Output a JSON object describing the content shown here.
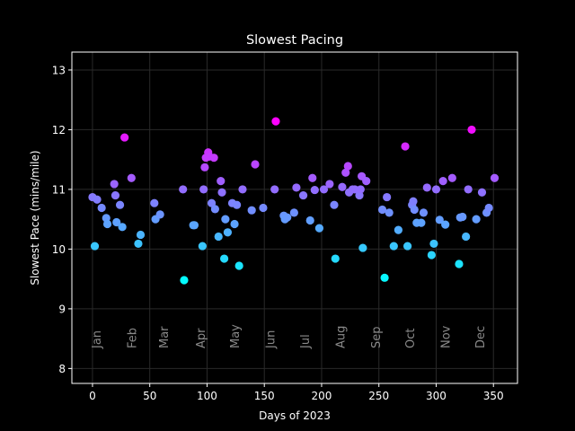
{
  "chart_data": {
    "type": "scatter",
    "title": "Slowest Pacing",
    "xlabel": "Days of 2023",
    "ylabel": "Slowest Pace (mins/mile)",
    "xlim": [
      -18,
      371
    ],
    "ylim": [
      7.75,
      13.3
    ],
    "xticks": [
      0,
      50,
      100,
      150,
      200,
      250,
      300,
      350
    ],
    "yticks": [
      8,
      9,
      10,
      11,
      12,
      13
    ],
    "grid": true,
    "colormap": "cool (cyan = faster, magenta = slower)",
    "month_labels": [
      {
        "label": "Jan",
        "x": 3
      },
      {
        "label": "Feb",
        "x": 34
      },
      {
        "label": "Mar",
        "x": 62
      },
      {
        "label": "Apr",
        "x": 94
      },
      {
        "label": "May",
        "x": 124
      },
      {
        "label": "Jun",
        "x": 155
      },
      {
        "label": "Jul",
        "x": 185
      },
      {
        "label": "Aug",
        "x": 216
      },
      {
        "label": "Sep",
        "x": 247
      },
      {
        "label": "Oct",
        "x": 277
      },
      {
        "label": "Nov",
        "x": 308
      },
      {
        "label": "Dec",
        "x": 338
      }
    ],
    "points": [
      {
        "x": 0,
        "y": 10.87
      },
      {
        "x": 2,
        "y": 10.05
      },
      {
        "x": 4,
        "y": 10.83
      },
      {
        "x": 8,
        "y": 10.69
      },
      {
        "x": 12,
        "y": 10.52
      },
      {
        "x": 13,
        "y": 10.42
      },
      {
        "x": 19,
        "y": 11.09
      },
      {
        "x": 20,
        "y": 10.9
      },
      {
        "x": 21,
        "y": 10.45
      },
      {
        "x": 24,
        "y": 10.74
      },
      {
        "x": 26,
        "y": 10.37
      },
      {
        "x": 28,
        "y": 11.87
      },
      {
        "x": 34,
        "y": 11.19
      },
      {
        "x": 40,
        "y": 10.09
      },
      {
        "x": 42,
        "y": 10.24
      },
      {
        "x": 54,
        "y": 10.77
      },
      {
        "x": 55,
        "y": 10.5
      },
      {
        "x": 59,
        "y": 10.58
      },
      {
        "x": 79,
        "y": 11.0
      },
      {
        "x": 80,
        "y": 9.48
      },
      {
        "x": 88,
        "y": 10.4
      },
      {
        "x": 89,
        "y": 10.4
      },
      {
        "x": 96,
        "y": 10.05
      },
      {
        "x": 97,
        "y": 11.0
      },
      {
        "x": 98,
        "y": 11.37
      },
      {
        "x": 99,
        "y": 11.53
      },
      {
        "x": 101,
        "y": 11.62
      },
      {
        "x": 102,
        "y": 11.55
      },
      {
        "x": 104,
        "y": 10.77
      },
      {
        "x": 106,
        "y": 11.53
      },
      {
        "x": 107,
        "y": 10.67
      },
      {
        "x": 110,
        "y": 10.21
      },
      {
        "x": 112,
        "y": 11.14
      },
      {
        "x": 113,
        "y": 10.95
      },
      {
        "x": 115,
        "y": 9.84
      },
      {
        "x": 116,
        "y": 10.5
      },
      {
        "x": 118,
        "y": 10.28
      },
      {
        "x": 122,
        "y": 10.77
      },
      {
        "x": 124,
        "y": 10.42
      },
      {
        "x": 126,
        "y": 10.74
      },
      {
        "x": 128,
        "y": 9.72
      },
      {
        "x": 131,
        "y": 11.0
      },
      {
        "x": 139,
        "y": 10.65
      },
      {
        "x": 142,
        "y": 11.42
      },
      {
        "x": 149,
        "y": 10.69
      },
      {
        "x": 159,
        "y": 11.0
      },
      {
        "x": 160,
        "y": 12.14
      },
      {
        "x": 167,
        "y": 10.56
      },
      {
        "x": 168,
        "y": 10.5
      },
      {
        "x": 170,
        "y": 10.53
      },
      {
        "x": 176,
        "y": 10.61
      },
      {
        "x": 178,
        "y": 11.03
      },
      {
        "x": 184,
        "y": 10.9
      },
      {
        "x": 190,
        "y": 10.48
      },
      {
        "x": 192,
        "y": 11.19
      },
      {
        "x": 194,
        "y": 10.99
      },
      {
        "x": 198,
        "y": 10.35
      },
      {
        "x": 202,
        "y": 11.0
      },
      {
        "x": 207,
        "y": 11.09
      },
      {
        "x": 211,
        "y": 10.74
      },
      {
        "x": 212,
        "y": 9.84
      },
      {
        "x": 218,
        "y": 11.04
      },
      {
        "x": 221,
        "y": 11.28
      },
      {
        "x": 223,
        "y": 11.39
      },
      {
        "x": 224,
        "y": 10.95
      },
      {
        "x": 227,
        "y": 11.0
      },
      {
        "x": 229,
        "y": 11.0
      },
      {
        "x": 233,
        "y": 10.9
      },
      {
        "x": 234,
        "y": 11.0
      },
      {
        "x": 235,
        "y": 11.22
      },
      {
        "x": 236,
        "y": 10.02
      },
      {
        "x": 239,
        "y": 11.14
      },
      {
        "x": 253,
        "y": 10.66
      },
      {
        "x": 255,
        "y": 9.52
      },
      {
        "x": 257,
        "y": 10.87
      },
      {
        "x": 259,
        "y": 10.61
      },
      {
        "x": 263,
        "y": 10.05
      },
      {
        "x": 267,
        "y": 10.32
      },
      {
        "x": 273,
        "y": 11.72
      },
      {
        "x": 275,
        "y": 10.05
      },
      {
        "x": 279,
        "y": 10.74
      },
      {
        "x": 280,
        "y": 10.8
      },
      {
        "x": 281,
        "y": 10.66
      },
      {
        "x": 283,
        "y": 10.44
      },
      {
        "x": 287,
        "y": 10.44
      },
      {
        "x": 289,
        "y": 10.61
      },
      {
        "x": 292,
        "y": 11.03
      },
      {
        "x": 296,
        "y": 9.9
      },
      {
        "x": 298,
        "y": 10.09
      },
      {
        "x": 300,
        "y": 11.0
      },
      {
        "x": 303,
        "y": 10.49
      },
      {
        "x": 306,
        "y": 11.14
      },
      {
        "x": 308,
        "y": 10.41
      },
      {
        "x": 314,
        "y": 11.19
      },
      {
        "x": 320,
        "y": 9.75
      },
      {
        "x": 321,
        "y": 10.53
      },
      {
        "x": 323,
        "y": 10.54
      },
      {
        "x": 326,
        "y": 10.21
      },
      {
        "x": 328,
        "y": 11.0
      },
      {
        "x": 331,
        "y": 12.0
      },
      {
        "x": 335,
        "y": 10.5
      },
      {
        "x": 340,
        "y": 10.95
      },
      {
        "x": 344,
        "y": 10.61
      },
      {
        "x": 346,
        "y": 10.69
      },
      {
        "x": 351,
        "y": 11.19
      }
    ]
  }
}
